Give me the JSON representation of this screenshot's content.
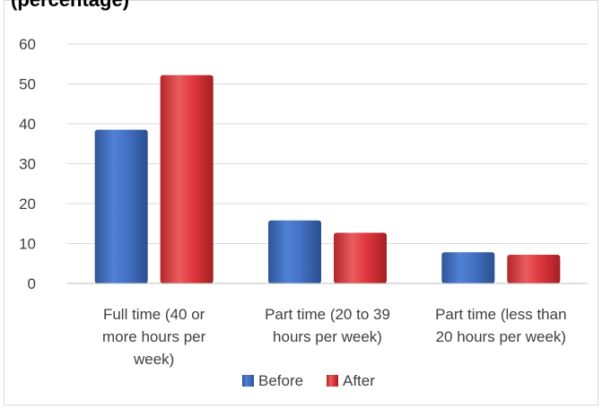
{
  "title_fragment": "(percentage)",
  "chart_data": {
    "type": "bar",
    "categories": [
      [
        "Full time (40 or",
        "more hours per",
        "week)"
      ],
      [
        "Part time (20 to 39",
        "hours per week)"
      ],
      [
        "Part time (less than",
        "20 hours per week)"
      ]
    ],
    "series": [
      {
        "name": "Before",
        "values": [
          38.5,
          15.8,
          7.8
        ],
        "color": "#4472c4"
      },
      {
        "name": "After",
        "values": [
          52.2,
          12.7,
          7.2
        ],
        "color": "#e0393e"
      }
    ],
    "ylim": [
      0,
      60
    ],
    "yticks": [
      "0",
      "10",
      "20",
      "30",
      "40",
      "50",
      "60"
    ],
    "grid": true,
    "legend_position": "bottom"
  }
}
